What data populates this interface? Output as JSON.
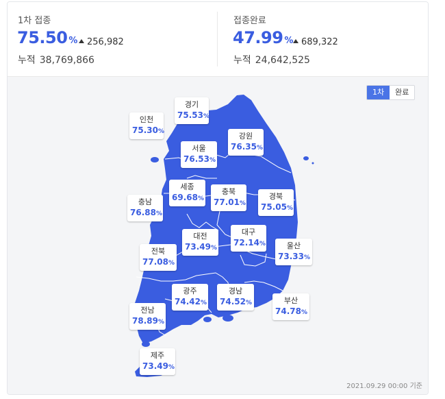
{
  "first_dose": {
    "label": "1차 접종",
    "rate": "75.50",
    "unit": "%",
    "delta": "256,982",
    "total_label": "누적",
    "total": "38,769,866"
  },
  "completed": {
    "label": "접종완료",
    "rate": "47.99",
    "unit": "%",
    "delta": "689,322",
    "total_label": "누적",
    "total": "24,642,525"
  },
  "toggle": {
    "first": "1차",
    "complete": "완료",
    "active": "first"
  },
  "colors": {
    "accent": "#3a5de0",
    "map_fill": "#3a5de0",
    "map_line": "#ffffff",
    "toggle_active": "#4a74e6"
  },
  "regions": [
    {
      "key": "gyeonggi",
      "name": "경기",
      "rate": "75.53"
    },
    {
      "key": "incheon",
      "name": "인천",
      "rate": "75.30"
    },
    {
      "key": "gangwon",
      "name": "강원",
      "rate": "76.35"
    },
    {
      "key": "seoul",
      "name": "서울",
      "rate": "76.53"
    },
    {
      "key": "sejong",
      "name": "세종",
      "rate": "69.68"
    },
    {
      "key": "chungbuk",
      "name": "충북",
      "rate": "77.01"
    },
    {
      "key": "gyeongbuk",
      "name": "경북",
      "rate": "75.05"
    },
    {
      "key": "chungnam",
      "name": "충남",
      "rate": "76.88"
    },
    {
      "key": "daejeon",
      "name": "대전",
      "rate": "73.49"
    },
    {
      "key": "daegu",
      "name": "대구",
      "rate": "72.14"
    },
    {
      "key": "jeonbuk",
      "name": "전북",
      "rate": "77.08"
    },
    {
      "key": "ulsan",
      "name": "울산",
      "rate": "73.33"
    },
    {
      "key": "gwangju",
      "name": "광주",
      "rate": "74.42"
    },
    {
      "key": "gyeongnam",
      "name": "경남",
      "rate": "74.52"
    },
    {
      "key": "busan",
      "name": "부산",
      "rate": "74.78"
    },
    {
      "key": "jeonnam",
      "name": "전남",
      "rate": "78.89"
    },
    {
      "key": "jeju",
      "name": "제주",
      "rate": "73.49"
    }
  ],
  "footnote": "2021.09.29 00:00 기준"
}
